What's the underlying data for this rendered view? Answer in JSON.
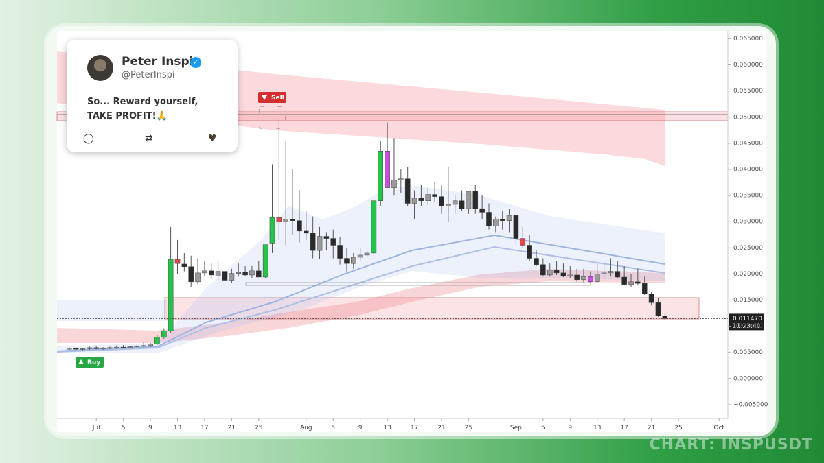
{
  "tweet": {
    "name": "Peter Inspi",
    "handle": "@PeterInspi",
    "text": "So... Reward yourself, TAKE PROFIT!🙏"
  },
  "watermark": "CHART: INSPUSDT",
  "chart_data": {
    "type": "candlestick",
    "x": [
      -4,
      -3,
      -2,
      -1,
      0,
      1,
      2,
      3,
      4,
      5,
      6,
      7,
      8,
      9,
      10,
      11,
      12,
      13,
      14,
      15,
      16,
      17,
      18,
      19,
      20,
      21,
      22,
      23,
      24,
      25,
      26,
      27,
      28,
      29,
      30,
      31,
      32,
      33,
      34,
      35,
      36,
      37,
      38,
      39,
      40,
      41,
      42,
      43,
      44,
      45,
      46,
      47,
      48,
      49,
      50,
      51,
      52,
      53,
      54,
      55,
      56,
      57,
      58,
      59,
      60,
      61,
      62,
      63,
      64,
      65,
      66,
      67,
      68,
      69,
      70,
      71,
      72,
      73,
      74,
      75,
      76,
      77,
      78,
      79,
      80,
      81,
      82,
      83,
      84
    ],
    "open": [
      0.0056,
      0.0058,
      0.0056,
      0.0057,
      0.0059,
      0.0057,
      0.0058,
      0.0059,
      0.006,
      0.0059,
      0.0061,
      0.0062,
      0.0063,
      0.0066,
      0.0079,
      0.0091,
      0.0228,
      0.0219,
      0.0214,
      0.0185,
      0.0202,
      0.0206,
      0.0196,
      0.0205,
      0.0188,
      0.0201,
      0.0203,
      0.0198,
      0.0206,
      0.0194,
      0.0259,
      0.0308,
      0.03,
      0.0305,
      0.0302,
      0.0282,
      0.0278,
      0.0245,
      0.0272,
      0.0268,
      0.0255,
      0.023,
      0.022,
      0.0232,
      0.0236,
      0.024,
      0.034,
      0.0435,
      0.0365,
      0.038,
      0.0382,
      0.0335,
      0.0345,
      0.034,
      0.0352,
      0.0348,
      0.033,
      0.0333,
      0.034,
      0.0325,
      0.0358,
      0.0325,
      0.0318,
      0.0292,
      0.0305,
      0.0302,
      0.0312,
      0.0268,
      0.0255,
      0.023,
      0.0218,
      0.0198,
      0.0208,
      0.0202,
      0.0196,
      0.0198,
      0.0189,
      0.0195,
      0.0185,
      0.02,
      0.0202,
      0.0205,
      0.0194,
      0.018,
      0.0185,
      0.0182,
      0.0162,
      0.0145,
      0.012
    ],
    "high": [
      0.006,
      0.006,
      0.0059,
      0.0061,
      0.0062,
      0.006,
      0.0061,
      0.0063,
      0.0064,
      0.0063,
      0.0065,
      0.007,
      0.0068,
      0.0083,
      0.0096,
      0.029,
      0.0265,
      0.024,
      0.0235,
      0.023,
      0.0225,
      0.022,
      0.0225,
      0.0215,
      0.021,
      0.022,
      0.0215,
      0.0215,
      0.0225,
      0.025,
      0.041,
      0.0495,
      0.0455,
      0.04,
      0.036,
      0.032,
      0.031,
      0.029,
      0.028,
      0.0285,
      0.027,
      0.025,
      0.024,
      0.025,
      0.0255,
      0.034,
      0.0455,
      0.049,
      0.046,
      0.04,
      0.0405,
      0.036,
      0.037,
      0.0365,
      0.0375,
      0.037,
      0.0405,
      0.035,
      0.036,
      0.0355,
      0.037,
      0.035,
      0.0335,
      0.031,
      0.032,
      0.0325,
      0.0318,
      0.029,
      0.0275,
      0.0245,
      0.023,
      0.022,
      0.0225,
      0.022,
      0.0215,
      0.021,
      0.021,
      0.0205,
      0.022,
      0.0225,
      0.023,
      0.0225,
      0.0215,
      0.02,
      0.021,
      0.0195,
      0.0165,
      0.0155,
      0.0125
    ],
    "low": [
      0.0054,
      0.0055,
      0.0054,
      0.0055,
      0.0056,
      0.0055,
      0.0056,
      0.0057,
      0.0058,
      0.0057,
      0.0059,
      0.006,
      0.006,
      0.0064,
      0.0076,
      0.0088,
      0.02,
      0.0205,
      0.0175,
      0.018,
      0.0195,
      0.019,
      0.0188,
      0.018,
      0.0182,
      0.0195,
      0.0196,
      0.0192,
      0.0194,
      0.0192,
      0.024,
      0.0265,
      0.0255,
      0.0275,
      0.026,
      0.0265,
      0.023,
      0.0228,
      0.0245,
      0.023,
      0.0218,
      0.0205,
      0.021,
      0.0225,
      0.0228,
      0.0235,
      0.033,
      0.037,
      0.035,
      0.0355,
      0.033,
      0.0305,
      0.033,
      0.0332,
      0.0338,
      0.0315,
      0.03,
      0.0315,
      0.032,
      0.0315,
      0.0315,
      0.0305,
      0.0285,
      0.028,
      0.0285,
      0.028,
      0.0255,
      0.025,
      0.0225,
      0.0215,
      0.0195,
      0.0195,
      0.0198,
      0.0194,
      0.0192,
      0.0185,
      0.0184,
      0.0183,
      0.0182,
      0.019,
      0.0195,
      0.0192,
      0.0178,
      0.0175,
      0.0178,
      0.016,
      0.014,
      0.0118,
      0.0112
    ],
    "close": [
      0.0058,
      0.0056,
      0.0057,
      0.0059,
      0.0057,
      0.0058,
      0.0059,
      0.006,
      0.0059,
      0.0061,
      0.0062,
      0.0063,
      0.0066,
      0.0079,
      0.0091,
      0.0228,
      0.022,
      0.0214,
      0.0185,
      0.0202,
      0.0206,
      0.0198,
      0.0205,
      0.0188,
      0.0201,
      0.0203,
      0.0198,
      0.0206,
      0.0194,
      0.0256,
      0.0308,
      0.03,
      0.0305,
      0.0302,
      0.0282,
      0.0278,
      0.0245,
      0.0272,
      0.0268,
      0.0255,
      0.023,
      0.022,
      0.0232,
      0.0236,
      0.024,
      0.034,
      0.0435,
      0.0365,
      0.038,
      0.0382,
      0.0335,
      0.0345,
      0.034,
      0.0352,
      0.0348,
      0.033,
      0.0333,
      0.034,
      0.0325,
      0.0358,
      0.0325,
      0.0318,
      0.0292,
      0.0305,
      0.0302,
      0.0312,
      0.0268,
      0.0255,
      0.023,
      0.0218,
      0.0198,
      0.0208,
      0.0202,
      0.0196,
      0.0198,
      0.0189,
      0.0195,
      0.0185,
      0.02,
      0.0202,
      0.0205,
      0.0194,
      0.018,
      0.0185,
      0.0182,
      0.0162,
      0.0145,
      0.012,
      0.01147
    ],
    "up_color": "#9a9a9a",
    "down_color": "#2a2a2a",
    "highlights": [
      {
        "x": 9,
        "color": "#27c24c"
      },
      {
        "x": 10,
        "color": "#27c24c"
      },
      {
        "x": 11,
        "color": "#27c24c"
      },
      {
        "x": 12,
        "color": "#e0474c"
      },
      {
        "x": 25,
        "color": "#27c24c"
      },
      {
        "x": 26,
        "color": "#27c24c"
      },
      {
        "x": 27,
        "color": "#e0474c"
      },
      {
        "x": 41,
        "color": "#27c24c"
      },
      {
        "x": 42,
        "color": "#27c24c"
      },
      {
        "x": 43,
        "color": "#c64fe0"
      },
      {
        "x": 63,
        "color": "#e0474c"
      },
      {
        "x": 73,
        "color": "#c64fe0"
      }
    ],
    "xlim": [
      -5.8,
      93.3
    ],
    "xticks": [
      {
        "value": 0,
        "label": "Jul"
      },
      {
        "value": 4,
        "label": "5"
      },
      {
        "value": 8,
        "label": "9"
      },
      {
        "value": 12,
        "label": "13"
      },
      {
        "value": 16,
        "label": "17"
      },
      {
        "value": 20,
        "label": "21"
      },
      {
        "value": 24,
        "label": "25"
      },
      {
        "value": 31,
        "label": "Aug"
      },
      {
        "value": 35,
        "label": "5"
      },
      {
        "value": 39,
        "label": "9"
      },
      {
        "value": 43,
        "label": "13"
      },
      {
        "value": 47,
        "label": "17"
      },
      {
        "value": 51,
        "label": "21"
      },
      {
        "value": 55,
        "label": "25"
      },
      {
        "value": 62,
        "label": "Sep"
      },
      {
        "value": 66,
        "label": "5"
      },
      {
        "value": 70,
        "label": "9"
      },
      {
        "value": 74,
        "label": "13"
      },
      {
        "value": 78,
        "label": "17"
      },
      {
        "value": 82,
        "label": "21"
      },
      {
        "value": 86,
        "label": "25"
      },
      {
        "value": 92,
        "label": "Oct"
      }
    ],
    "ylim": [
      -0.0075,
      0.0665
    ],
    "yticks": [
      {
        "value": 0.065,
        "label": "0.065000"
      },
      {
        "value": 0.06,
        "label": "0.060000"
      },
      {
        "value": 0.055,
        "label": "0.055000"
      },
      {
        "value": 0.05,
        "label": "0.050000"
      },
      {
        "value": 0.045,
        "label": "0.045000"
      },
      {
        "value": 0.04,
        "label": "0.040000"
      },
      {
        "value": 0.035,
        "label": "0.035000"
      },
      {
        "value": 0.03,
        "label": "0.030000"
      },
      {
        "value": 0.025,
        "label": "0.025000"
      },
      {
        "value": 0.02,
        "label": "0.020000"
      },
      {
        "value": 0.015,
        "label": "0.015000"
      },
      {
        "value": 0.01,
        "label": "0.010000"
      },
      {
        "value": 0.005,
        "label": "0.005000"
      },
      {
        "value": 0,
        "label": "0.000000"
      },
      {
        "value": -0.005,
        "label": "−0.005000"
      }
    ],
    "last_price": {
      "value": 0.01147,
      "label": "0.011470"
    },
    "countdown": "11:23:40",
    "signals": [
      {
        "label": "Buy"
      },
      {
        "label": "Sell"
      }
    ]
  }
}
